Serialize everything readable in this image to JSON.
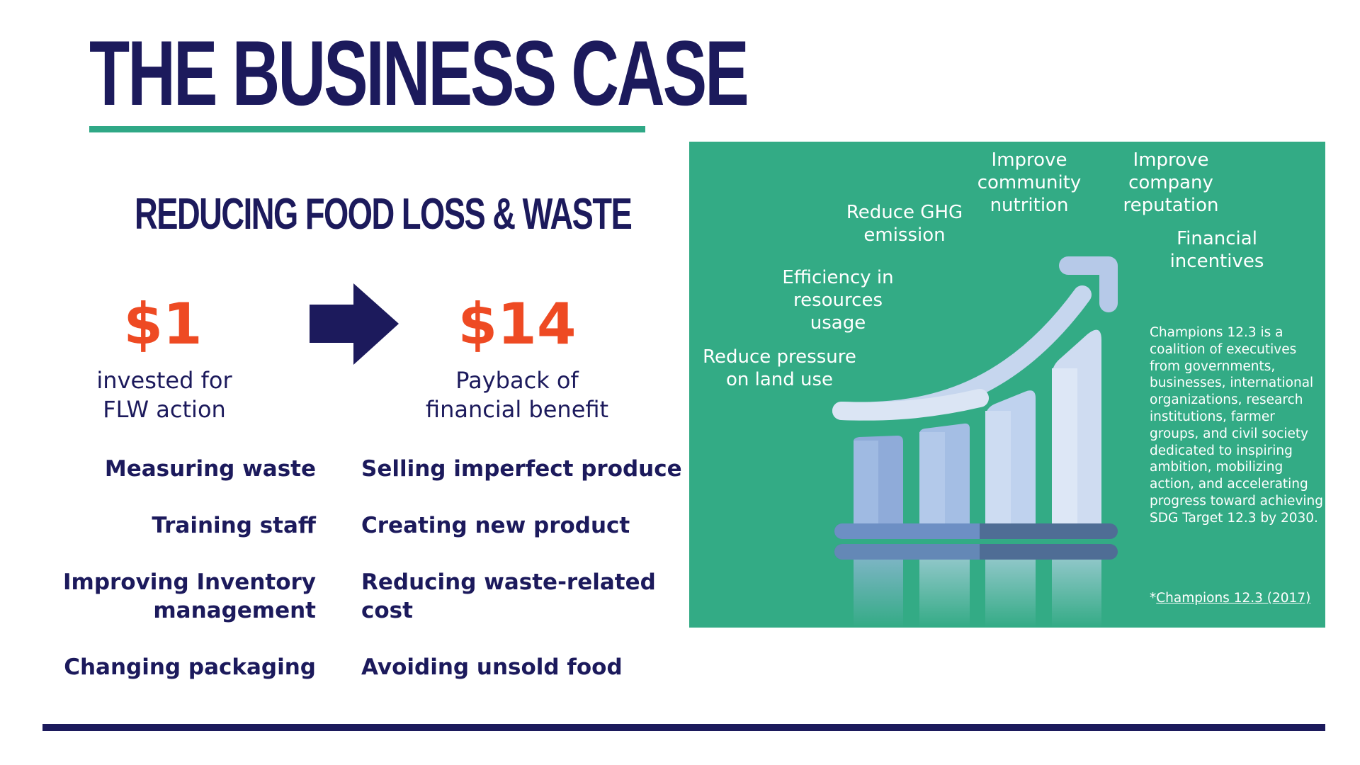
{
  "title": "THE BUSINESS CASE",
  "subtitle": "REDUCING FOOD LOSS & WASTE",
  "invest": {
    "amount": "$1",
    "caption_lines": [
      "invested for",
      "FLW action"
    ]
  },
  "payback": {
    "amount": "$14",
    "caption_lines": [
      "Payback of",
      "financial benefit"
    ]
  },
  "actions_left": [
    {
      "lines": [
        "Measuring waste"
      ]
    },
    {
      "lines": [
        "Training staff"
      ]
    },
    {
      "lines": [
        "Improving Inventory",
        "management"
      ]
    },
    {
      "lines": [
        "Changing packaging"
      ]
    }
  ],
  "actions_right": [
    {
      "lines": [
        "Selling imperfect produce"
      ]
    },
    {
      "lines": [
        "Creating new product"
      ]
    },
    {
      "lines": [
        "Reducing waste-related",
        "cost"
      ]
    },
    {
      "lines": [
        "Avoiding unsold food"
      ]
    }
  ],
  "panel": {
    "benefits": [
      {
        "lines": [
          "Reduce pressure",
          "on land use"
        ]
      },
      {
        "lines": [
          "Efficiency in",
          "resources",
          "usage"
        ]
      },
      {
        "lines": [
          "Reduce GHG",
          "emission"
        ]
      },
      {
        "lines": [
          "Improve",
          "community",
          "nutrition"
        ]
      },
      {
        "lines": [
          "Improve",
          "company",
          "reputation"
        ]
      },
      {
        "lines": [
          "Financial",
          "incentives"
        ]
      }
    ],
    "about": "Champions 12.3 is a coalition of executives from governments, businesses, international organizations, research institutions, farmer groups, and civil society dedicated to inspiring ambition, mobilizing action, and accelerating progress toward achieving SDG Target 12.3 by 2030.",
    "citation_prefix": "*",
    "citation_link": "Champions 12.3 (2017)"
  },
  "colors": {
    "navy": "#1c1a5c",
    "accent_green": "#2fa886",
    "panel_green": "#33ab85",
    "orange": "#ee4a23"
  }
}
